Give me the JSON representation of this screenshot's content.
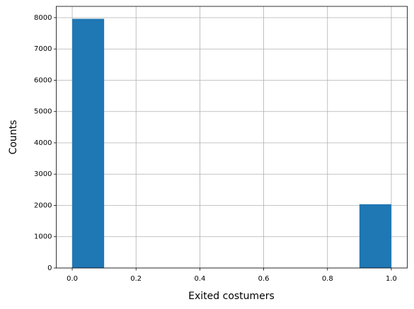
{
  "chart_data": {
    "type": "histogram",
    "xlabel": "Exited costumers",
    "ylabel": "Counts",
    "bins": [
      0,
      0.1,
      0.2,
      0.3,
      0.4,
      0.5,
      0.6,
      0.7,
      0.8,
      0.9,
      1
    ],
    "counts": [
      7963,
      0,
      0,
      0,
      0,
      0,
      0,
      0,
      0,
      2037
    ],
    "color": "#1f77b4",
    "xlim": [
      -0.05,
      1.05
    ],
    "xticks": [
      {
        "value": 0,
        "label": "0.0"
      },
      0.2,
      0.4,
      0.6,
      0.8,
      {
        "value": 1,
        "label": "1.0"
      }
    ],
    "ylim": [
      0,
      8361
    ],
    "yticks": [
      0,
      1000,
      2000,
      3000,
      4000,
      5000,
      6000,
      7000,
      8000
    ],
    "grid": true
  }
}
